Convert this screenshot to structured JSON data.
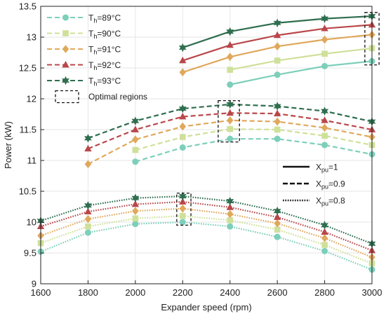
{
  "chart_data": {
    "type": "line",
    "title": "",
    "xlabel": "Expander speed (rpm)",
    "ylabel": "Power (kW)",
    "xlim": [
      1600,
      3000
    ],
    "ylim": [
      9,
      13.5
    ],
    "xticks": [
      "1600",
      "1800",
      "2000",
      "2200",
      "2400",
      "2600",
      "2800",
      "3000"
    ],
    "yticks": [
      "9",
      "9.5",
      "10",
      "10.5",
      "11",
      "11.5",
      "12",
      "12.5",
      "13",
      "13.5"
    ],
    "grid": true,
    "colors": {
      "89": "#7dcfba",
      "90": "#cfe09a",
      "91": "#e0a85c",
      "92": "#b9474a",
      "93": "#2f6e4f"
    },
    "markers": {
      "89": "circle",
      "90": "square",
      "91": "diamond",
      "92": "triangle",
      "93": "star"
    },
    "legend_temp": [
      {
        "key": "89",
        "prefix": "T",
        "sub": "h",
        "suffix": "=89°C"
      },
      {
        "key": "90",
        "prefix": "T",
        "sub": "h",
        "suffix": "=90°C"
      },
      {
        "key": "91",
        "prefix": "T",
        "sub": "h",
        "suffix": "=91°C"
      },
      {
        "key": "92",
        "prefix": "T",
        "sub": "h",
        "suffix": "=92°C"
      },
      {
        "key": "93",
        "prefix": "T",
        "sub": "h",
        "suffix": "=93°C"
      }
    ],
    "legend_optimal": "Optimal regions",
    "legend_xpu": [
      {
        "style": "solid",
        "prefix": "X",
        "sub": "pu",
        "suffix": "=1"
      },
      {
        "style": "dashed",
        "prefix": "X",
        "sub": "pu",
        "suffix": "=0.9"
      },
      {
        "style": "dotted",
        "prefix": "X",
        "sub": "pu",
        "suffix": "=0.8"
      }
    ],
    "series": [
      {
        "th": "89",
        "xpu": "1",
        "style": "solid",
        "x": [
          2400,
          2600,
          2800,
          3000
        ],
        "y": [
          12.23,
          12.39,
          12.53,
          12.61
        ]
      },
      {
        "th": "90",
        "xpu": "1",
        "style": "solid",
        "x": [
          2400,
          2600,
          2800,
          3000
        ],
        "y": [
          12.47,
          12.62,
          12.73,
          12.82
        ]
      },
      {
        "th": "91",
        "xpu": "1",
        "style": "solid",
        "x": [
          2200,
          2400,
          2600,
          2800,
          3000
        ],
        "y": [
          12.43,
          12.68,
          12.85,
          12.96,
          13.04
        ]
      },
      {
        "th": "92",
        "xpu": "1",
        "style": "solid",
        "x": [
          2200,
          2400,
          2600,
          2800,
          3000
        ],
        "y": [
          12.62,
          12.87,
          13.03,
          13.14,
          13.2
        ]
      },
      {
        "th": "93",
        "xpu": "1",
        "style": "solid",
        "x": [
          2200,
          2400,
          2600,
          2800,
          3000
        ],
        "y": [
          12.83,
          13.09,
          13.23,
          13.3,
          13.34
        ]
      },
      {
        "th": "89",
        "xpu": "0.9",
        "style": "dashed",
        "x": [
          2000,
          2200,
          2400,
          2600,
          2800,
          3000
        ],
        "y": [
          10.98,
          11.21,
          11.35,
          11.35,
          11.25,
          11.1
        ]
      },
      {
        "th": "90",
        "xpu": "0.9",
        "style": "dashed",
        "x": [
          2000,
          2200,
          2400,
          2600,
          2800,
          3000
        ],
        "y": [
          11.17,
          11.38,
          11.51,
          11.5,
          11.4,
          11.25
        ]
      },
      {
        "th": "91",
        "xpu": "0.9",
        "style": "dashed",
        "x": [
          1800,
          2000,
          2200,
          2400,
          2600,
          2800,
          3000
        ],
        "y": [
          10.94,
          11.34,
          11.55,
          11.65,
          11.63,
          11.53,
          11.38
        ]
      },
      {
        "th": "92",
        "xpu": "0.9",
        "style": "dashed",
        "x": [
          1800,
          2000,
          2200,
          2400,
          2600,
          2800,
          3000
        ],
        "y": [
          11.19,
          11.5,
          11.71,
          11.77,
          11.76,
          11.65,
          11.5
        ]
      },
      {
        "th": "93",
        "xpu": "0.9",
        "style": "dashed",
        "x": [
          1800,
          2000,
          2200,
          2400,
          2600,
          2800,
          3000
        ],
        "y": [
          11.36,
          11.64,
          11.84,
          11.91,
          11.88,
          11.8,
          11.63
        ]
      },
      {
        "th": "89",
        "xpu": "0.8",
        "style": "dotted",
        "x": [
          1600,
          1800,
          2000,
          2200,
          2400,
          2600,
          2800,
          3000
        ],
        "y": [
          9.52,
          9.83,
          9.97,
          10.0,
          9.93,
          9.76,
          9.53,
          9.23
        ]
      },
      {
        "th": "90",
        "xpu": "0.8",
        "style": "dotted",
        "x": [
          1600,
          1800,
          2000,
          2200,
          2400,
          2600,
          2800,
          3000
        ],
        "y": [
          9.66,
          9.93,
          10.06,
          10.1,
          10.03,
          9.88,
          9.63,
          9.33
        ]
      },
      {
        "th": "91",
        "xpu": "0.8",
        "style": "dotted",
        "x": [
          1600,
          1800,
          2000,
          2200,
          2400,
          2600,
          2800,
          3000
        ],
        "y": [
          9.78,
          10.05,
          10.18,
          10.22,
          10.13,
          9.98,
          9.74,
          9.43
        ]
      },
      {
        "th": "92",
        "xpu": "0.8",
        "style": "dotted",
        "x": [
          1600,
          1800,
          2000,
          2200,
          2400,
          2600,
          2800,
          3000
        ],
        "y": [
          9.93,
          10.17,
          10.29,
          10.33,
          10.24,
          10.08,
          9.84,
          9.54
        ]
      },
      {
        "th": "93",
        "xpu": "0.8",
        "style": "dotted",
        "x": [
          1600,
          1800,
          2000,
          2200,
          2400,
          2600,
          2800,
          3000
        ],
        "y": [
          10.02,
          10.27,
          10.39,
          10.42,
          10.34,
          10.18,
          9.95,
          9.65
        ]
      }
    ],
    "optimal_regions": [
      {
        "x": [
          2970,
          3030
        ],
        "y": [
          12.55,
          13.4
        ]
      },
      {
        "x": [
          2350,
          2440
        ],
        "y": [
          11.3,
          11.97
        ]
      },
      {
        "x": [
          2175,
          2235
        ],
        "y": [
          9.95,
          10.47
        ]
      }
    ]
  }
}
